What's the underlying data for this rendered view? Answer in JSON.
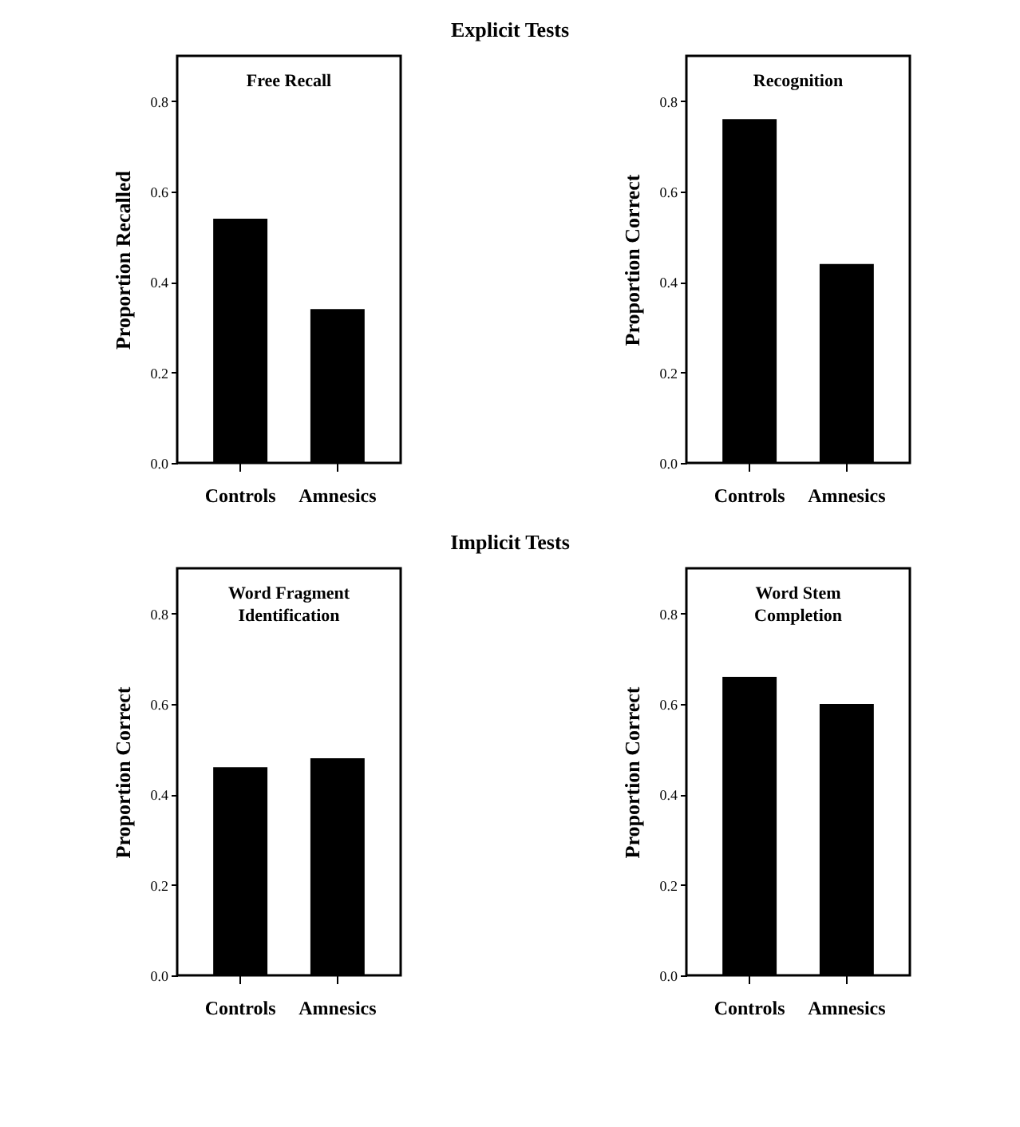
{
  "chart_data": [
    {
      "type": "bar",
      "title": "Free Recall",
      "annotations": [
        "Explicit Tests"
      ],
      "ylabel": "Proportion Recalled",
      "categories": [
        "Controls",
        "Amnesics"
      ],
      "values": [
        0.54,
        0.34
      ],
      "color": "#000000",
      "ylim": [
        0,
        0.9
      ],
      "yticks": [
        "0.0",
        0.2,
        0.4,
        0.6,
        0.8
      ]
    },
    {
      "type": "bar",
      "title": "Recognition",
      "ylabel": "Proportion Correct",
      "categories": [
        "Controls",
        "Amnesics"
      ],
      "values": [
        0.76,
        0.44
      ],
      "color": "#000000",
      "ylim": [
        0,
        0.9
      ],
      "yticks": [
        "0.0",
        0.2,
        0.4,
        0.6,
        0.8
      ]
    },
    {
      "type": "bar",
      "title": "Word Fragment Identification",
      "annotations": [
        "Implicit Tests"
      ],
      "ylabel": "Proportion Correct",
      "categories": [
        "Controls",
        "Amnesics"
      ],
      "values": [
        0.46,
        0.48
      ],
      "color": "#000000",
      "ylim": [
        0,
        0.9
      ],
      "yticks": [
        "0.0",
        0.2,
        0.4,
        0.6,
        0.8
      ]
    },
    {
      "type": "bar",
      "title": "Word Stem Completion",
      "ylabel": "Proportion Correct",
      "categories": [
        "Controls",
        "Amnesics"
      ],
      "values": [
        0.66,
        0.6
      ],
      "color": "#000000",
      "ylim": [
        0,
        0.9
      ],
      "yticks": [
        "0.0",
        0.2,
        0.4,
        0.6,
        0.8
      ]
    }
  ]
}
